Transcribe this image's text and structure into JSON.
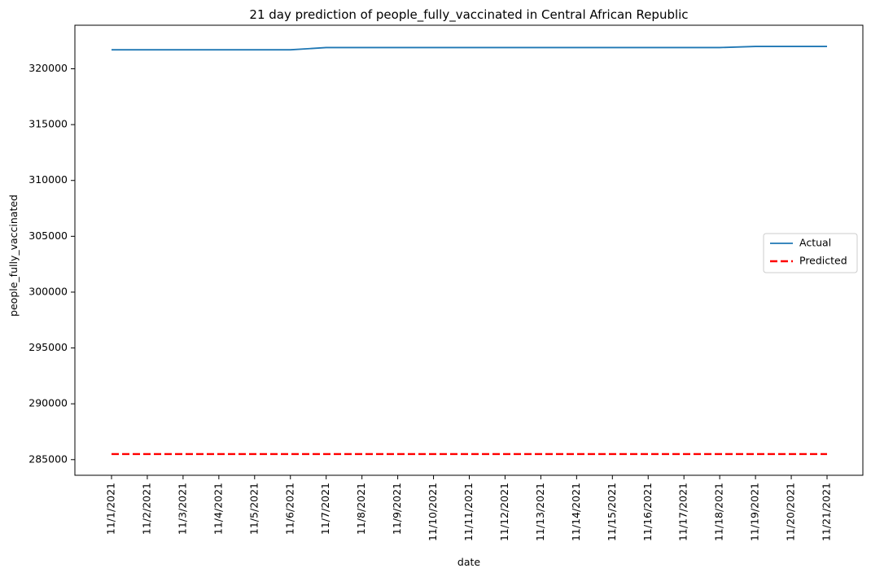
{
  "chart_data": {
    "type": "line",
    "title": "21 day prediction of people_fully_vaccinated in Central African Republic",
    "xlabel": "date",
    "ylabel": "people_fully_vaccinated",
    "categories": [
      "11/1/2021",
      "11/2/2021",
      "11/3/2021",
      "11/4/2021",
      "11/5/2021",
      "11/6/2021",
      "11/7/2021",
      "11/8/2021",
      "11/9/2021",
      "11/10/2021",
      "11/11/2021",
      "11/12/2021",
      "11/13/2021",
      "11/14/2021",
      "11/15/2021",
      "11/16/2021",
      "11/17/2021",
      "11/18/2021",
      "11/19/2021",
      "11/20/2021",
      "11/21/2021"
    ],
    "yticks": [
      285000,
      290000,
      295000,
      300000,
      305000,
      310000,
      315000,
      320000
    ],
    "ylim": [
      283600,
      323900
    ],
    "grid": false,
    "legend_position": "center-right",
    "series": [
      {
        "name": "Actual",
        "color": "#1f77b4",
        "style": "solid",
        "values": [
          321700,
          321700,
          321700,
          321700,
          321700,
          321700,
          321900,
          321900,
          321900,
          321900,
          321900,
          321900,
          321900,
          321900,
          321900,
          321900,
          321900,
          321900,
          322000,
          322000,
          322000
        ]
      },
      {
        "name": "Predicted",
        "color": "#ff0000",
        "style": "dashed",
        "values": [
          285500,
          285500,
          285500,
          285500,
          285500,
          285500,
          285500,
          285500,
          285500,
          285500,
          285500,
          285500,
          285500,
          285500,
          285500,
          285500,
          285500,
          285500,
          285500,
          285500,
          285500
        ]
      }
    ]
  }
}
